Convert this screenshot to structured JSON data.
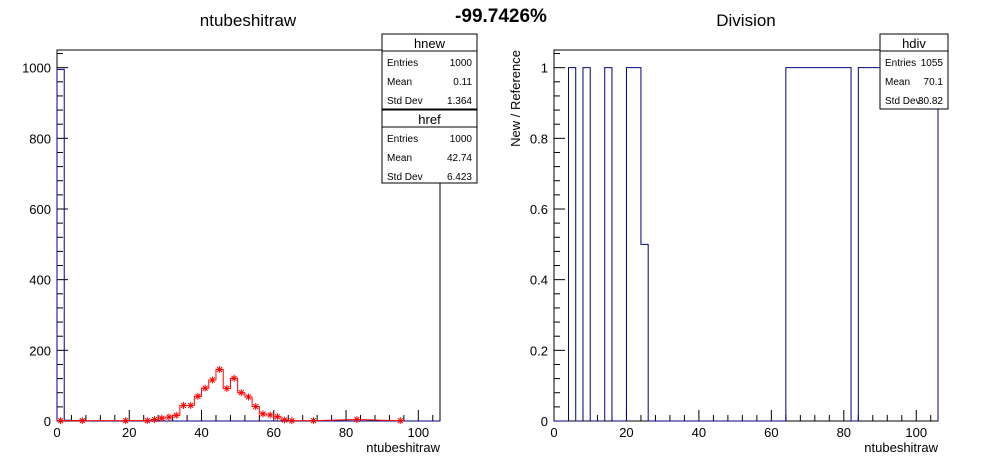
{
  "header": {
    "diff_label": "-99.7426%"
  },
  "chart_data": [
    {
      "type": "histogram",
      "title": "ntubeshitraw",
      "xlabel": "ntubeshitraw",
      "ylabel": "",
      "xlim": [
        0,
        106
      ],
      "ylim": [
        0,
        1050
      ],
      "x_ticks": [
        0,
        20,
        40,
        60,
        80,
        100
      ],
      "y_ticks": [
        0,
        200,
        400,
        600,
        800,
        1000
      ],
      "grid": false,
      "series": [
        {
          "name": "hnew",
          "style": "step",
          "color": "#000080",
          "bin_width": 2,
          "bins": [
            [
              0,
              995
            ],
            [
              2,
              2
            ],
            [
              4,
              1
            ],
            [
              6,
              2
            ],
            [
              8,
              0
            ],
            [
              10,
              0
            ]
          ]
        },
        {
          "name": "href",
          "style": "markers",
          "color": "#ff0000",
          "bin_width": 2,
          "points": [
            [
              1,
              1
            ],
            [
              7,
              1
            ],
            [
              19,
              1
            ],
            [
              25,
              1
            ],
            [
              27,
              4
            ],
            [
              29,
              8
            ],
            [
              31,
              11
            ],
            [
              33,
              16
            ],
            [
              35,
              44
            ],
            [
              37,
              44
            ],
            [
              39,
              70
            ],
            [
              41,
              93
            ],
            [
              43,
              116
            ],
            [
              45,
              146
            ],
            [
              47,
              92
            ],
            [
              49,
              121
            ],
            [
              51,
              80
            ],
            [
              53,
              68
            ],
            [
              55,
              41
            ],
            [
              57,
              20
            ],
            [
              59,
              17
            ],
            [
              61,
              12
            ],
            [
              63,
              3
            ],
            [
              65,
              1
            ],
            [
              71,
              1
            ],
            [
              83,
              4
            ],
            [
              95,
              1
            ]
          ]
        }
      ],
      "stats": [
        {
          "name": "hnew",
          "rows": [
            {
              "label": "Entries",
              "value": "1000"
            },
            {
              "label": "Mean",
              "value": "0.11"
            },
            {
              "label": "Std Dev",
              "value": "1.364"
            }
          ]
        },
        {
          "name": "href",
          "rows": [
            {
              "label": "Entries",
              "value": "1000"
            },
            {
              "label": "Mean",
              "value": "42.74"
            },
            {
              "label": "Std Dev",
              "value": "6.423"
            }
          ]
        }
      ],
      "legend_position": "top-right"
    },
    {
      "type": "histogram",
      "title": "Division",
      "xlabel": "ntubeshitraw",
      "ylabel": "New / Reference",
      "xlim": [
        0,
        106
      ],
      "ylim": [
        0,
        1.05
      ],
      "x_ticks": [
        0,
        20,
        40,
        60,
        80,
        100
      ],
      "y_ticks": [
        0,
        0.2,
        0.4,
        0.6,
        0.8,
        1
      ],
      "grid": false,
      "series": [
        {
          "name": "hdiv",
          "style": "step",
          "color": "#000080",
          "bin_width": 2,
          "bins": [
            [
              4,
              1
            ],
            [
              8,
              1
            ],
            [
              14,
              1
            ],
            [
              20,
              1
            ],
            [
              22,
              1
            ],
            [
              24,
              0.5
            ],
            [
              64,
              1
            ],
            [
              66,
              1
            ],
            [
              68,
              1
            ],
            [
              70,
              1
            ],
            [
              72,
              1
            ],
            [
              74,
              1
            ],
            [
              76,
              1
            ],
            [
              78,
              1
            ],
            [
              80,
              1
            ],
            [
              84,
              1
            ],
            [
              86,
              1
            ],
            [
              88,
              1
            ],
            [
              90,
              1
            ],
            [
              92,
              1
            ],
            [
              94,
              1
            ],
            [
              96,
              1
            ],
            [
              98,
              1
            ],
            [
              100,
              1
            ],
            [
              102,
              1
            ],
            [
              104,
              1
            ]
          ]
        }
      ],
      "stats": [
        {
          "name": "hdiv",
          "rows": [
            {
              "label": "Entries",
              "value": "1055"
            },
            {
              "label": "Mean",
              "value": "70.1"
            },
            {
              "label": "Std Dev",
              "value": "30.82"
            }
          ]
        }
      ],
      "legend_position": "top-right"
    }
  ]
}
